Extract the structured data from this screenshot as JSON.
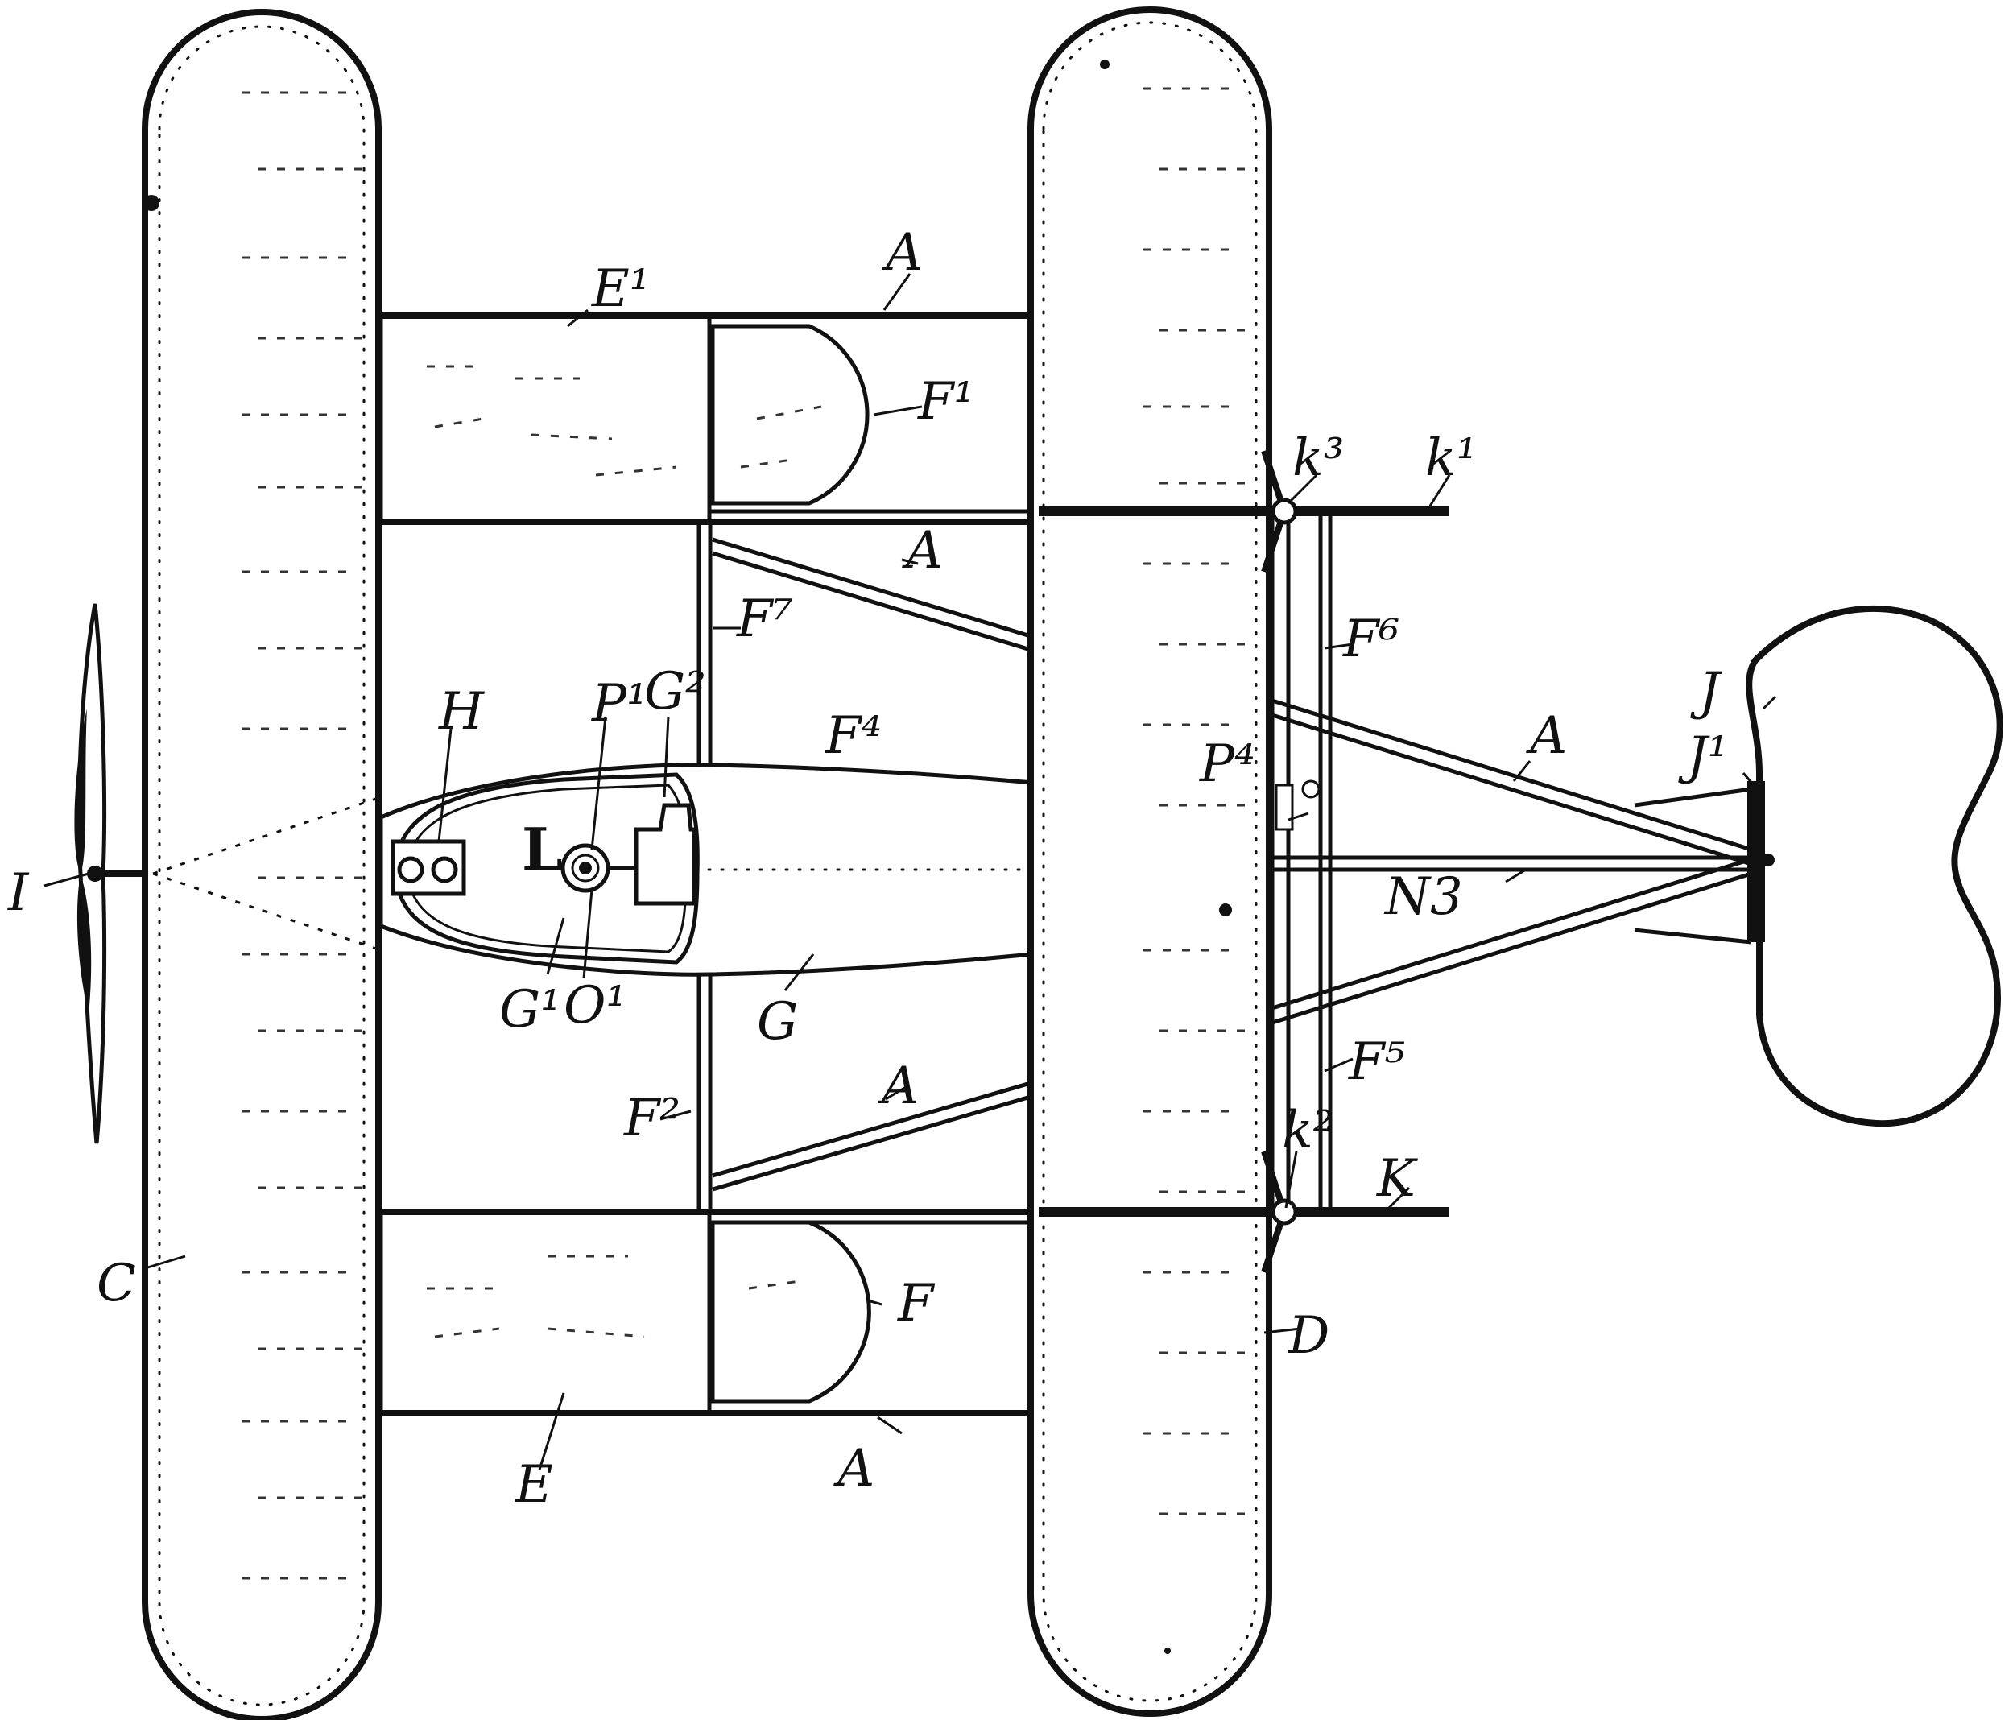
{
  "figure": {
    "labels": {
      "A_top": "A",
      "A_upper_brace": "A",
      "A_lower_brace": "A",
      "A_bottom": "A",
      "A_tail": "A",
      "C": "C",
      "D": "D",
      "E": "E",
      "E1": "E¹",
      "F": "F",
      "F1": "F¹",
      "F2": "F²",
      "F4": "F⁴",
      "F5": "F⁵",
      "F6": "F⁶",
      "F7": "F⁷",
      "G": "G",
      "G1": "G¹",
      "G2": "G²",
      "H": "H",
      "I": "I",
      "J": "J",
      "J1": "J¹",
      "K": "K",
      "k1": "k¹",
      "k2": "k²",
      "k3": "k³",
      "L": "L",
      "N3": "N3",
      "O1": "O¹",
      "P1": "P¹",
      "P4": "P⁴"
    }
  }
}
